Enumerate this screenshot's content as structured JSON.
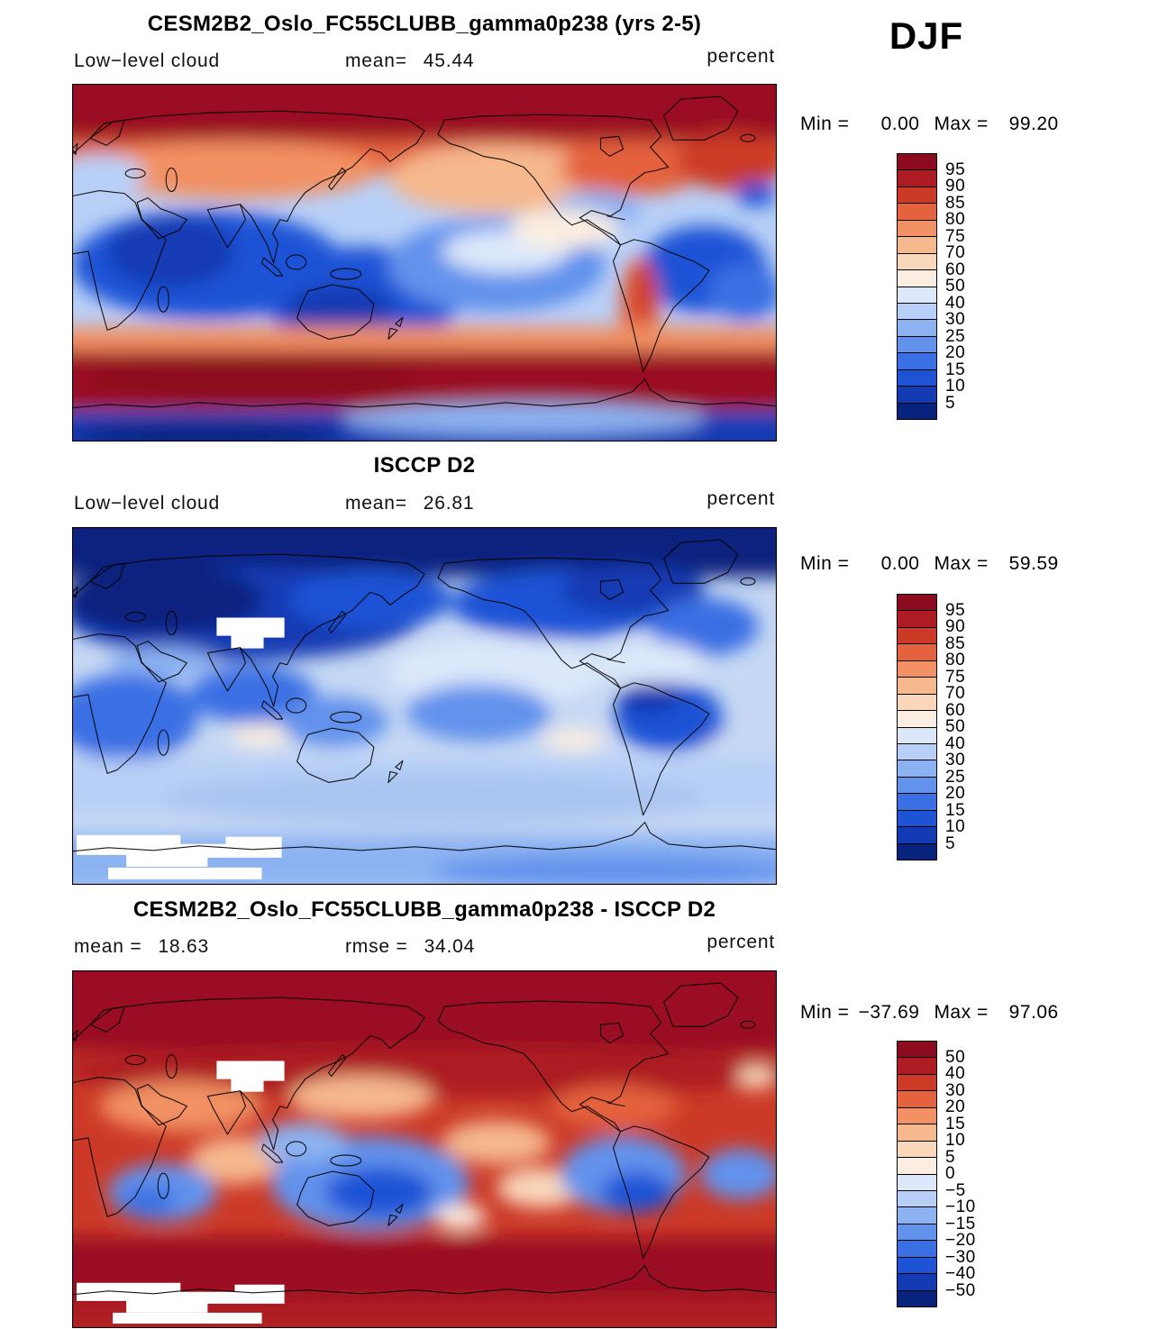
{
  "season_label": "DJF",
  "panels": [
    {
      "title": "CESM2B2_Oslo_FC55CLUBB_gamma0p238 (yrs 2-5)",
      "header": {
        "left_label": "Low−level cloud",
        "mean_label": "mean=",
        "mean": "45.44",
        "units": "percent"
      },
      "minmax": {
        "min_label": "Min =",
        "min": "0.00",
        "max_label": "Max =",
        "max": "99.20"
      },
      "colorbar": {
        "ticks_top_to_bottom": [
          "95",
          "90",
          "85",
          "80",
          "75",
          "70",
          "60",
          "50",
          "40",
          "30",
          "25",
          "20",
          "15",
          "10",
          "5"
        ],
        "colors_bottom_to_top": [
          "#08237e",
          "#123bb4",
          "#1f53d6",
          "#3a70e4",
          "#6292ec",
          "#8cb2f2",
          "#b8d0f7",
          "#dce8fa",
          "#fbeee1",
          "#f9d7ba",
          "#f6b88d",
          "#f29164",
          "#e4623e",
          "#cc3a27",
          "#ad1c22",
          "#8c0b1f"
        ]
      }
    },
    {
      "title": "ISCCP D2",
      "header": {
        "left_label": "Low−level cloud",
        "mean_label": "mean=",
        "mean": "26.81",
        "units": "percent"
      },
      "minmax": {
        "min_label": "Min =",
        "min": "0.00",
        "max_label": "Max =",
        "max": "59.59"
      },
      "colorbar": {
        "ticks_top_to_bottom": [
          "95",
          "90",
          "85",
          "80",
          "75",
          "70",
          "60",
          "50",
          "40",
          "30",
          "25",
          "20",
          "15",
          "10",
          "5"
        ],
        "colors_bottom_to_top": [
          "#08237e",
          "#123bb4",
          "#1f53d6",
          "#3a70e4",
          "#6292ec",
          "#8cb2f2",
          "#b8d0f7",
          "#dce8fa",
          "#fbeee1",
          "#f9d7ba",
          "#f6b88d",
          "#f29164",
          "#e4623e",
          "#cc3a27",
          "#ad1c22",
          "#8c0b1f"
        ]
      }
    },
    {
      "title": "CESM2B2_Oslo_FC55CLUBB_gamma0p238 - ISCCP D2",
      "header": {
        "mean_label": "mean =",
        "mean": "18.63",
        "rmse_label": "rmse =",
        "rmse": "34.04",
        "units": "percent"
      },
      "minmax": {
        "min_label": "Min =",
        "min": "−37.69",
        "max_label": "Max =",
        "max": "97.06"
      },
      "colorbar": {
        "ticks_top_to_bottom": [
          "50",
          "40",
          "30",
          "20",
          "15",
          "10",
          "5",
          "0",
          "−5",
          "−10",
          "−15",
          "−20",
          "−30",
          "−40",
          "−50"
        ],
        "colors_bottom_to_top": [
          "#08237e",
          "#123bb4",
          "#1f53d6",
          "#3a70e4",
          "#6292ec",
          "#8cb2f2",
          "#b8d0f7",
          "#dce8fa",
          "#fbeee1",
          "#f9d7ba",
          "#f6b88d",
          "#f29164",
          "#e4623e",
          "#cc3a27",
          "#ad1c22",
          "#8c0b1f"
        ]
      }
    }
  ],
  "chart_data": [
    {
      "type": "heatmap",
      "title": "CESM2B2_Oslo_FC55CLUBB_gamma0p238 (yrs 2-5)",
      "variable": "Low-level cloud",
      "units": "percent",
      "season": "DJF",
      "stats": {
        "mean": 45.44,
        "min": 0.0,
        "max": 99.2
      },
      "contour_levels": [
        5,
        10,
        15,
        20,
        25,
        30,
        40,
        50,
        60,
        70,
        75,
        80,
        85,
        90,
        95
      ],
      "extent": "global latitude-longitude map, longitude 0-360, latitude -90 to 90",
      "legend_position": "right",
      "pattern_summary": "High values (red, 70-95%) over Arctic and Southern Ocean storm track; low values (blue, 5-30%) over tropical and subtropical continents and Indian Ocean; orange stratocumulus streak along west coast of South America; dark blue over Antarctica"
    },
    {
      "type": "heatmap",
      "title": "ISCCP D2",
      "variable": "Low-level cloud",
      "units": "percent",
      "season": "DJF",
      "stats": {
        "mean": 26.81,
        "min": 0.0,
        "max": 59.59
      },
      "contour_levels": [
        5,
        10,
        15,
        20,
        25,
        30,
        40,
        50,
        60,
        70,
        75,
        80,
        85,
        90,
        95
      ],
      "extent": "global latitude-longitude map, longitude 0-360, latitude -90 to 90",
      "legend_position": "right",
      "pattern_summary": "Mostly low-to-moderate values (blues, 10-50%); darkest blue over Arctic and northern continents and tropical land; light blue over midlatitude oceans; white missing-data patches over Tibet and Antarctica"
    },
    {
      "type": "heatmap",
      "title": "CESM2B2_Oslo_FC55CLUBB_gamma0p238 - ISCCP D2",
      "variable": "Low-level cloud difference (model minus observations)",
      "units": "percent",
      "season": "DJF",
      "stats": {
        "mean": 18.63,
        "rmse": 34.04,
        "min": -37.69,
        "max": 97.06
      },
      "contour_levels": [
        -50,
        -40,
        -30,
        -20,
        -15,
        -10,
        -5,
        0,
        5,
        10,
        15,
        20,
        30,
        40,
        50
      ],
      "extent": "global latitude-longitude map, longitude 0-360, latitude -90 to 90",
      "legend_position": "right",
      "pattern_summary": "Widespread positive bias (red, >20%) at high latitudes of both hemispheres; negative bias (blue, -10 to -30%) over subtropical oceans near Australia, eastern Pacific and tropical Atlantic; white missing-data patches over Tibet and Antarctica"
    }
  ]
}
